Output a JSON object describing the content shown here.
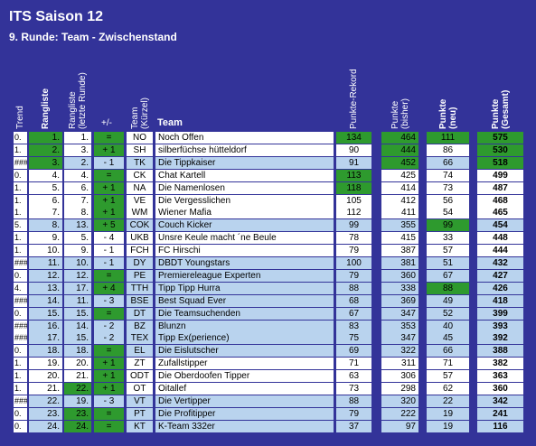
{
  "header": {
    "title": "ITS Saison 12",
    "subtitle": "9. Runde: Team - Zwischenstand"
  },
  "table": {
    "columns": [
      [
        "Trend"
      ],
      [
        "Rangliste"
      ],
      [
        "Rangliste",
        "(letzte Runde)"
      ],
      [
        "+/-"
      ],
      [
        "Team",
        "(Kürzel)"
      ],
      [
        "Team"
      ],
      [
        "Punkte-Rekord"
      ],
      [
        "Punkte",
        "(bisher)"
      ],
      [
        "Punkte",
        "(neu)"
      ],
      [
        "Punkte",
        "(Gesamt)"
      ]
    ],
    "rows": [
      [
        "0.",
        "1.",
        "1.",
        "=",
        "NO",
        "Noch Offen",
        134,
        464,
        111,
        575
      ],
      [
        "1.",
        "2.",
        "3.",
        "+ 1",
        "SH",
        "silberfüchse hütteldorf",
        90,
        444,
        86,
        530
      ],
      [
        "###",
        "3.",
        "2.",
        "- 1",
        "TK",
        "Die Tippkaiser",
        91,
        452,
        66,
        518
      ],
      [
        "0.",
        "4.",
        "4.",
        "=",
        "CK",
        "Chat Kartell",
        113,
        425,
        74,
        499
      ],
      [
        "1.",
        "5.",
        "6.",
        "+ 1",
        "NA",
        "Die Namenlosen",
        118,
        414,
        73,
        487
      ],
      [
        "1.",
        "6.",
        "7.",
        "+ 1",
        "VE",
        "Die Vergesslichen",
        105,
        412,
        56,
        468
      ],
      [
        "1.",
        "7.",
        "8.",
        "+ 1",
        "WM",
        "Wiener Mafia",
        112,
        411,
        54,
        465
      ],
      [
        "5.",
        "8.",
        "13.",
        "+ 5",
        "COK",
        "Couch Kicker",
        99,
        355,
        99,
        454
      ],
      [
        "1.",
        "9.",
        "5.",
        "- 4",
        "UKB",
        "Unsre Keule macht ´ne Beule",
        78,
        415,
        33,
        448
      ],
      [
        "1.",
        "10.",
        "9.",
        "- 1",
        "FCH",
        "FC Hirschi",
        79,
        387,
        57,
        444
      ],
      [
        "###",
        "11.",
        "10.",
        "- 1",
        "DY",
        "DBDT Youngstars",
        100,
        381,
        51,
        432
      ],
      [
        "0.",
        "12.",
        "12.",
        "=",
        "PE",
        "Premiereleague Experten",
        79,
        360,
        67,
        427
      ],
      [
        "4.",
        "13.",
        "17.",
        "+ 4",
        "TTH",
        "Tipp Tipp Hurra",
        88,
        338,
        88,
        426
      ],
      [
        "###",
        "14.",
        "11.",
        "- 3",
        "BSE",
        "Best Squad Ever",
        68,
        369,
        49,
        418
      ],
      [
        "0.",
        "15.",
        "15.",
        "=",
        "DT",
        "Die Teamsuchenden",
        67,
        347,
        52,
        399
      ],
      [
        "###",
        "16.",
        "14.",
        "- 2",
        "BZ",
        "Blunzn",
        83,
        353,
        40,
        393
      ],
      [
        "###",
        "17.",
        "15.",
        "- 2",
        "TEX",
        "Tipp Ex(perience)",
        75,
        347,
        45,
        392
      ],
      [
        "0.",
        "18.",
        "18.",
        "=",
        "EL",
        "Die Eislutscher",
        69,
        322,
        66,
        388
      ],
      [
        "1.",
        "19.",
        "20.",
        "+ 1",
        "ZT",
        "Zufallstipper",
        71,
        311,
        71,
        382
      ],
      [
        "1.",
        "20.",
        "21.",
        "+ 1",
        "ODT",
        "Die Oberdoofen Tipper",
        63,
        306,
        57,
        363
      ],
      [
        "1.",
        "21.",
        "22.",
        "+ 1",
        "OT",
        "Oitallef",
        73,
        298,
        62,
        360
      ],
      [
        "###",
        "22.",
        "19.",
        "- 3",
        "VT",
        "Die Vertipper",
        88,
        320,
        22,
        342
      ],
      [
        "0.",
        "23.",
        "23.",
        "=",
        "PT",
        "Die Profitipper",
        79,
        222,
        19,
        241
      ],
      [
        "0.",
        "24.",
        "24.",
        "=",
        "KT",
        "K-Team 332er",
        37,
        97,
        19,
        116
      ]
    ]
  }
}
